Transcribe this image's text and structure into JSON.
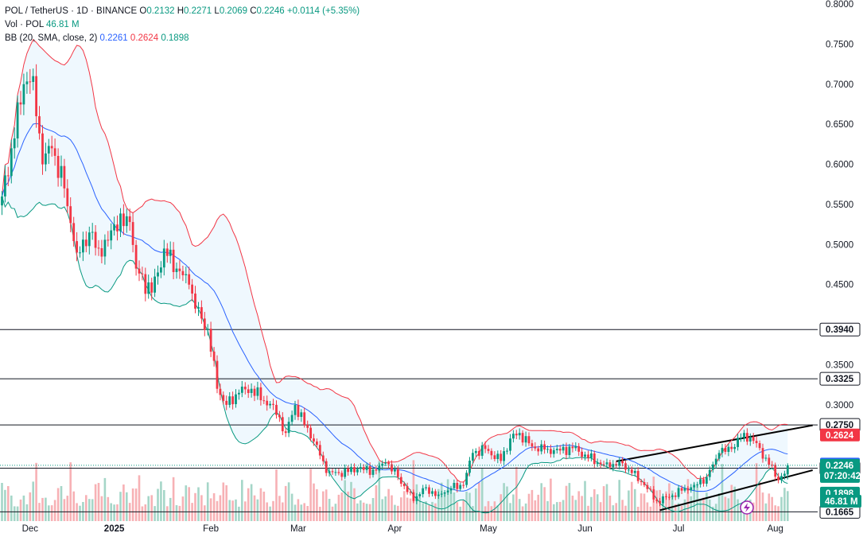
{
  "header": {
    "symbol": "POL / TetherUS · 1D · BINANCE",
    "ohlc": [
      {
        "label": "O",
        "value": "0.2132"
      },
      {
        "label": "H",
        "value": "0.2271"
      },
      {
        "label": "L",
        "value": "0.2069"
      },
      {
        "label": "C",
        "value": "0.2246"
      }
    ],
    "change": "+0.0114 (+5.35%)",
    "vol_label": "Vol · POL",
    "vol_value": "46.81 M",
    "bb_label": "BB (20, SMA, close, 2)",
    "bb_basis": "0.2261",
    "bb_upper": "0.2624",
    "bb_lower": "0.1898"
  },
  "colors": {
    "up": "#089981",
    "down": "#f23645",
    "basis": "#2962ff",
    "upper": "#f23645",
    "lower": "#089981",
    "band_fill": "#2196f3",
    "up_volume": "#a5d6c8",
    "down_volume": "#f7b1b5",
    "hline": "#131722"
  },
  "volume_badge": "46.81 M",
  "countdown": "07:20:42",
  "chart_data": {
    "type": "candlestick",
    "ylim": [
      0.155,
      0.805
    ],
    "y_ticks": [
      "0.8000",
      "0.7500",
      "0.7000",
      "0.6500",
      "0.6000",
      "0.5500",
      "0.5000",
      "0.4500",
      "0.3500",
      "0.3000"
    ],
    "x_tick_labels": [
      "Dec",
      "2025",
      "Feb",
      "Mar",
      "Apr",
      "May",
      "Jun",
      "Jul",
      "Aug"
    ],
    "price_levels": [
      "0.3940",
      "0.3325",
      "0.2750",
      "0.2210",
      "0.1665"
    ],
    "band_badges": [
      {
        "label": "0.2624",
        "kind": "upper"
      },
      {
        "label": "0.2261",
        "kind": "basis"
      },
      {
        "label": "0.2246",
        "kind": "last"
      },
      {
        "label": "0.1898",
        "kind": "lower"
      }
    ],
    "trendlines": [
      {
        "from": [
          "Jun 11",
          0.2295
        ],
        "to": [
          "Aug 13",
          0.2745
        ]
      },
      {
        "from": [
          "Jun 25",
          0.1685
        ],
        "to": [
          "Aug 13",
          0.2185
        ]
      }
    ],
    "close_anchors": [
      [
        "Nov 26",
        0.56
      ],
      [
        "Nov 29",
        0.62
      ],
      [
        "Dec 3",
        0.7
      ],
      [
        "Dec 6",
        0.71
      ],
      [
        "Dec 9",
        0.6
      ],
      [
        "Dec 12",
        0.62
      ],
      [
        "Dec 16",
        0.57
      ],
      [
        "Dec 20",
        0.49
      ],
      [
        "Dec 24",
        0.515
      ],
      [
        "Dec 28",
        0.485
      ],
      [
        "Jan 1",
        0.525
      ],
      [
        "Jan 6",
        0.528
      ],
      [
        "Jan 8",
        0.47
      ],
      [
        "Jan 13",
        0.44
      ],
      [
        "Jan 17",
        0.495
      ],
      [
        "Jan 21",
        0.47
      ],
      [
        "Jan 25",
        0.45
      ],
      [
        "Jan 27",
        0.42
      ],
      [
        "Jan 31",
        0.395
      ],
      [
        "Feb 3",
        0.32
      ],
      [
        "Feb 6",
        0.3
      ],
      [
        "Feb 10",
        0.315
      ],
      [
        "Feb 14",
        0.32
      ],
      [
        "Feb 18",
        0.305
      ],
      [
        "Feb 21",
        0.3
      ],
      [
        "Feb 25",
        0.265
      ],
      [
        "Feb 28",
        0.3
      ],
      [
        "Mar 3",
        0.275
      ],
      [
        "Mar 7",
        0.25
      ],
      [
        "Mar 10",
        0.215
      ],
      [
        "Mar 14",
        0.215
      ],
      [
        "Mar 20",
        0.22
      ],
      [
        "Mar 26",
        0.218
      ],
      [
        "Mar 29",
        0.228
      ],
      [
        "Apr 2",
        0.21
      ],
      [
        "Apr 7",
        0.18
      ],
      [
        "Apr 10",
        0.196
      ],
      [
        "Apr 15",
        0.188
      ],
      [
        "Apr 19",
        0.196
      ],
      [
        "Apr 23",
        0.2
      ],
      [
        "Apr 26",
        0.24
      ],
      [
        "Apr 30",
        0.245
      ],
      [
        "May 5",
        0.23
      ],
      [
        "May 8",
        0.258
      ],
      [
        "May 11",
        0.265
      ],
      [
        "May 15",
        0.248
      ],
      [
        "May 20",
        0.245
      ],
      [
        "May 24",
        0.243
      ],
      [
        "May 28",
        0.246
      ],
      [
        "Jun 1",
        0.238
      ],
      [
        "Jun 5",
        0.228
      ],
      [
        "Jun 9",
        0.222
      ],
      [
        "Jun 12",
        0.23
      ],
      [
        "Jun 16",
        0.215
      ],
      [
        "Jun 20",
        0.2
      ],
      [
        "Jun 24",
        0.18
      ],
      [
        "Jun 28",
        0.185
      ],
      [
        "Jul 2",
        0.193
      ],
      [
        "Jul 6",
        0.2
      ],
      [
        "Jul 10",
        0.21
      ],
      [
        "Jul 14",
        0.24
      ],
      [
        "Jul 18",
        0.245
      ],
      [
        "Jul 22",
        0.265
      ],
      [
        "Jul 25",
        0.255
      ],
      [
        "Jul 29",
        0.234
      ],
      [
        "Aug 2",
        0.206
      ],
      [
        "Aug 4",
        0.214
      ],
      [
        "Aug 5",
        0.2246
      ]
    ]
  }
}
